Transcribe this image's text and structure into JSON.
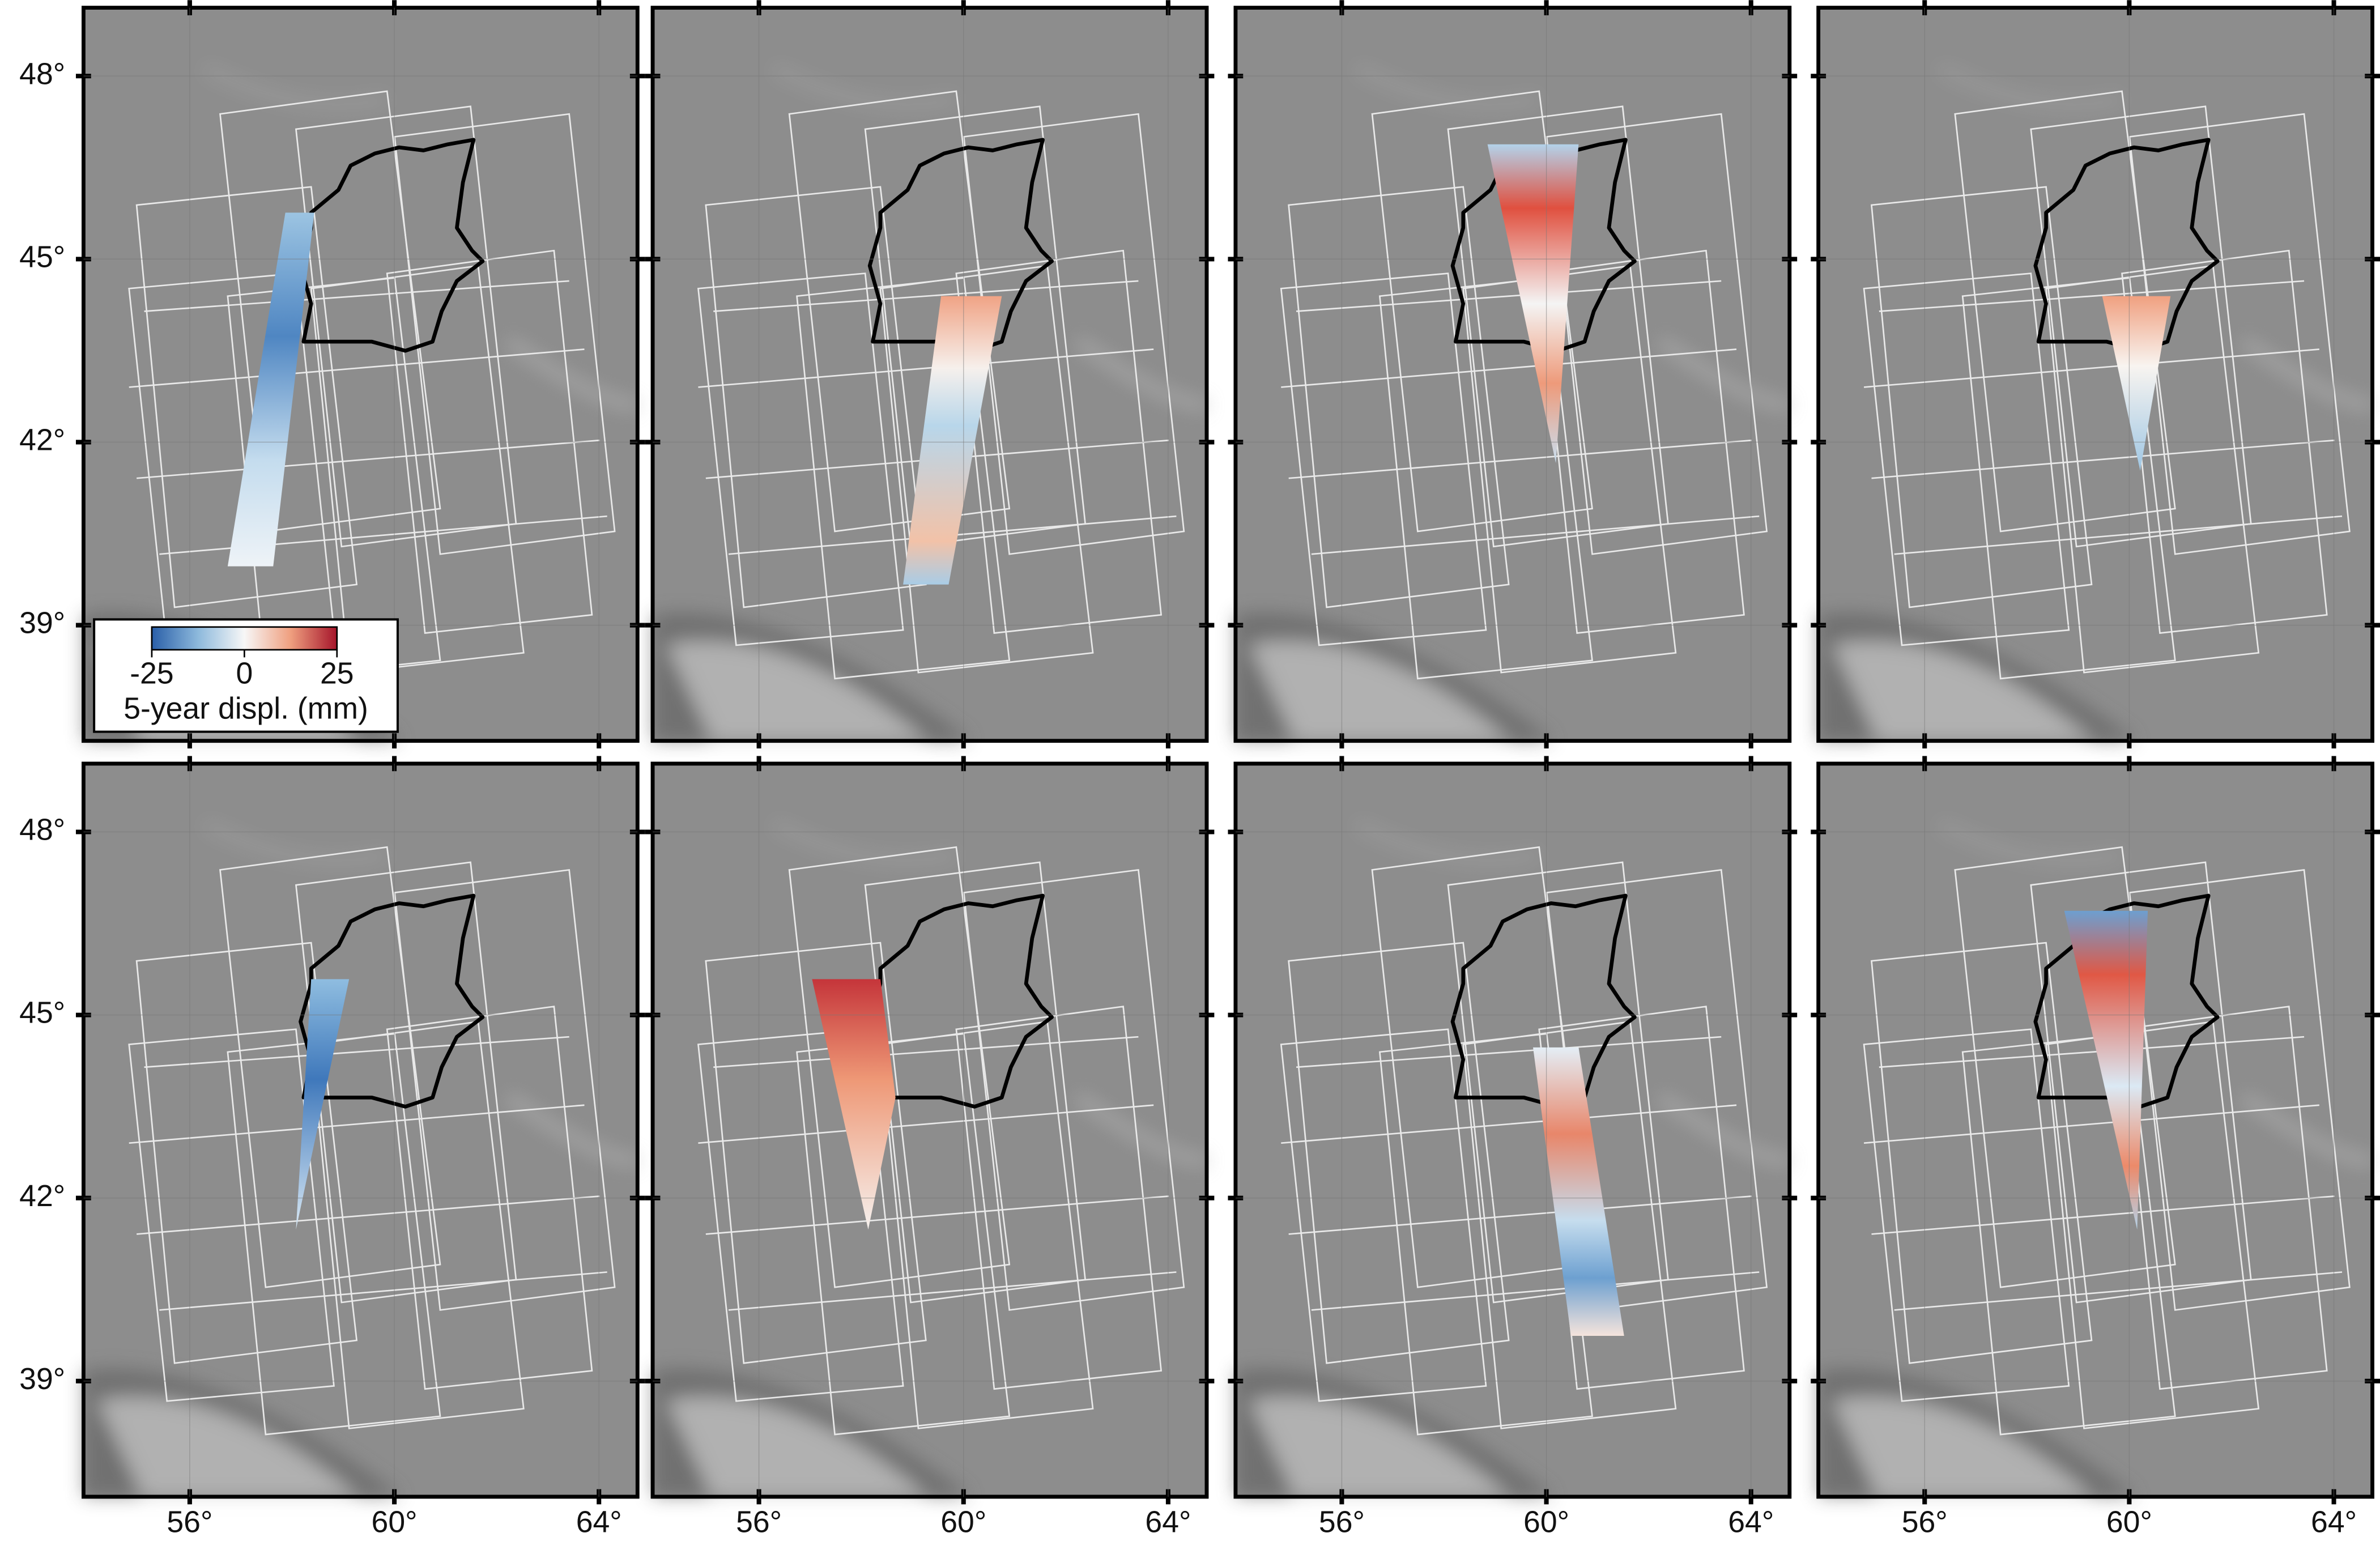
{
  "axes": {
    "lat_ticks": [
      {
        "value": 48,
        "label": "48°"
      },
      {
        "value": 45,
        "label": "45°"
      },
      {
        "value": 42,
        "label": "42°"
      },
      {
        "value": 39,
        "label": "39°"
      }
    ],
    "lon_ticks": [
      {
        "value": 56,
        "label": "56°"
      },
      {
        "value": 60,
        "label": "60°"
      },
      {
        "value": 64,
        "label": "64°"
      }
    ]
  },
  "legend": {
    "ticks": [
      -25,
      0,
      25
    ],
    "label": "5-year displ. (mm)"
  }
}
